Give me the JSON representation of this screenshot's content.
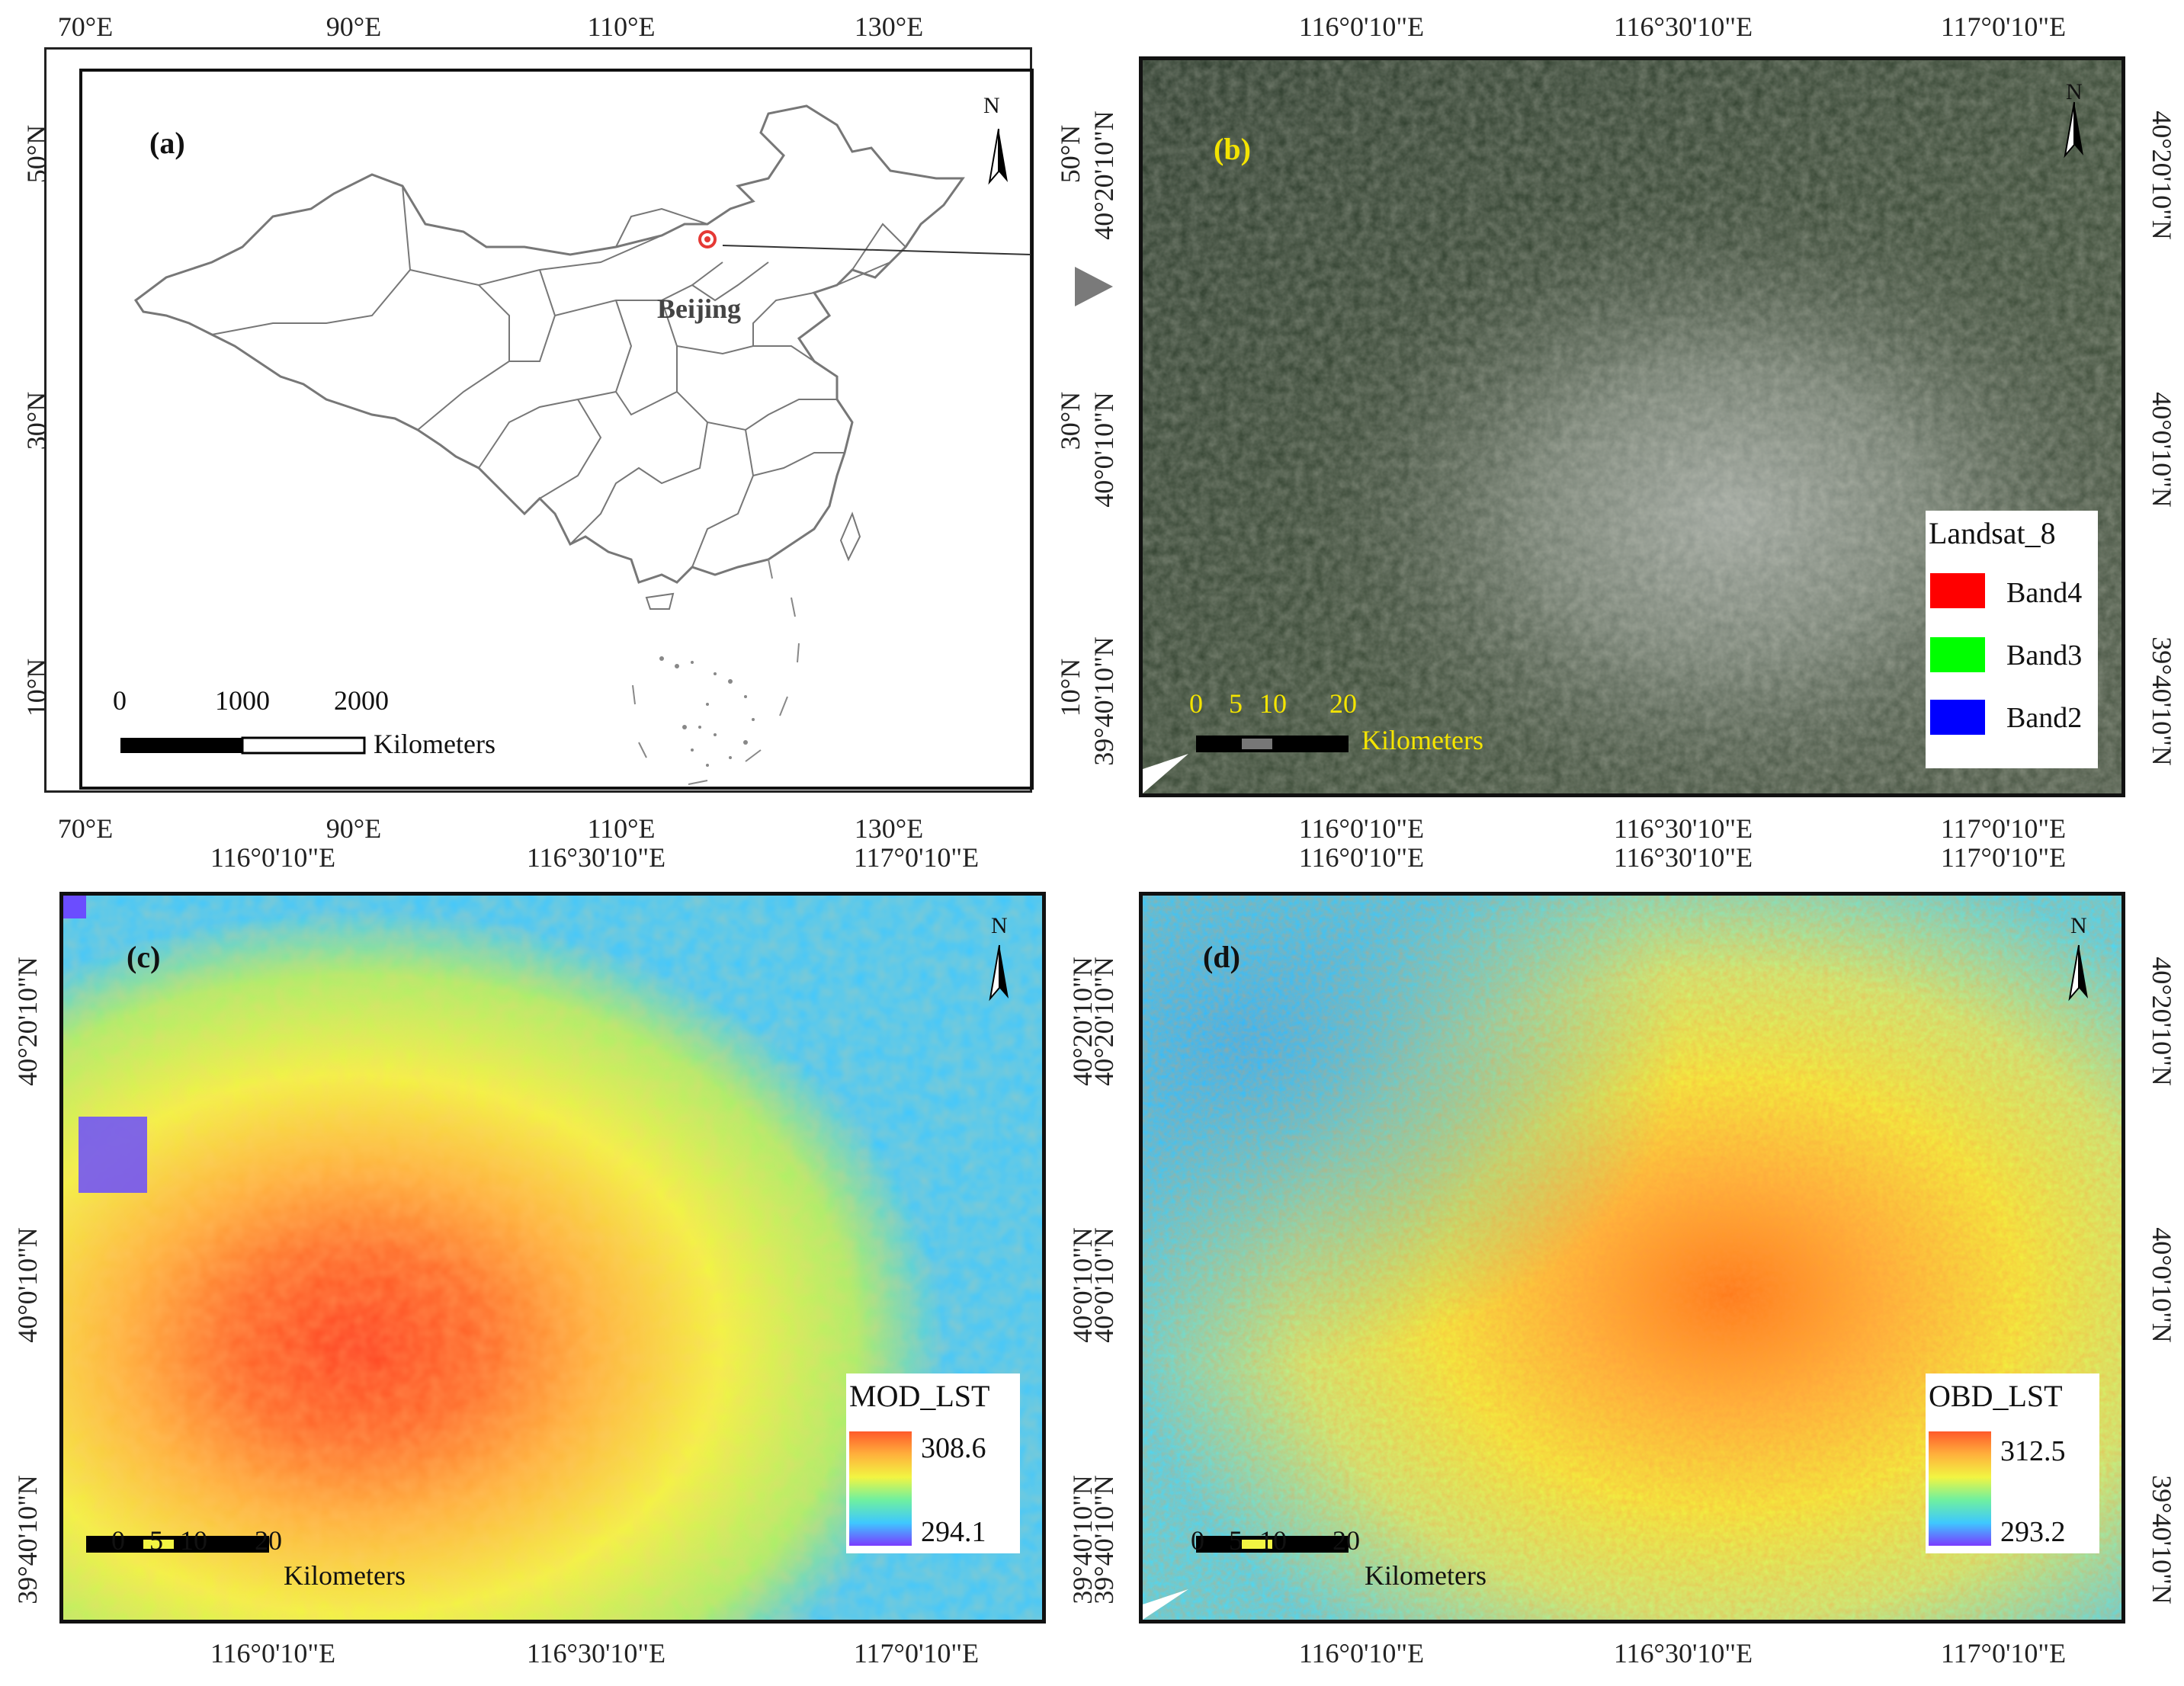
{
  "panel_a": {
    "letter": "(a)",
    "top_ticks": [
      "70°E",
      "90°E",
      "110°E",
      "130°E"
    ],
    "bottom_ticks": [
      "70°E",
      "90°E",
      "110°E",
      "130°E"
    ],
    "left_ticks": [
      "50°N",
      "30°N",
      "10°N"
    ],
    "right_ticks": [
      "50°N",
      "30°N",
      "10°N"
    ],
    "city_label": "Beijing",
    "north": "N",
    "scale": {
      "n0": "0",
      "n1": "1000",
      "n2": "2000",
      "units": "Kilometers"
    }
  },
  "panel_b": {
    "letter": "(b)",
    "top_ticks": [
      "116°0'10\"E",
      "116°30'10\"E",
      "117°0'10\"E"
    ],
    "bottom_ticks": [
      "116°0'10\"E",
      "116°30'10\"E",
      "117°0'10\"E"
    ],
    "left_ticks": [
      "40°20'10\"N",
      "40°0'10\"N",
      "39°40'10\"N"
    ],
    "right_ticks": [
      "40°20'10\"N",
      "40°0'10\"N",
      "39°40'10\"N"
    ],
    "north": "N",
    "legend": {
      "title": "Landsat_8",
      "items": [
        {
          "label": "Band4",
          "color": "#ff0000"
        },
        {
          "label": "Band3",
          "color": "#00ff00"
        },
        {
          "label": "Band2",
          "color": "#0000ff"
        }
      ]
    },
    "scale": {
      "n0": "0",
      "n1": "5",
      "n2": "10",
      "n3": "20",
      "units": "Kilometers"
    }
  },
  "panel_c": {
    "letter": "(c)",
    "top_ticks": [
      "116°0'10\"E",
      "116°30'10\"E",
      "117°0'10\"E"
    ],
    "bottom_ticks": [
      "116°0'10\"E",
      "116°30'10\"E",
      "117°0'10\"E"
    ],
    "left_ticks": [
      "40°20'10\"N",
      "40°0'10\"N",
      "39°40'10\"N"
    ],
    "right_ticks": [
      "40°20'10\"N",
      "40°0'10\"N",
      "39°40'10\"N"
    ],
    "north": "N",
    "legend": {
      "title": "MOD_LST",
      "max": "308.6",
      "min": "294.1"
    },
    "scale": {
      "n0": "0",
      "n1": "5",
      "n2": "10",
      "n3": "20",
      "units": "Kilometers"
    }
  },
  "panel_d": {
    "letter": "(d)",
    "top_ticks": [
      "116°0'10\"E",
      "116°30'10\"E",
      "117°0'10\"E"
    ],
    "bottom_ticks": [
      "116°0'10\"E",
      "116°30'10\"E",
      "117°0'10\"E"
    ],
    "left_ticks": [
      "40°20'10\"N",
      "40°0'10\"N",
      "39°40'10\"N"
    ],
    "right_ticks": [
      "40°20'10\"N",
      "40°0'10\"N",
      "39°40'10\"N"
    ],
    "north": "N",
    "legend": {
      "title": "OBD_LST",
      "max": "312.5",
      "min": "293.2"
    },
    "scale": {
      "n0": "0",
      "n1": "5",
      "n2": "10",
      "n3": "20",
      "units": "Kilometers"
    }
  },
  "colors": {
    "lst_ramp": [
      "#7a3cff",
      "#3ec8ff",
      "#f2f542",
      "#ffb03c",
      "#ff3b1f"
    ],
    "landsat_base": "#3b4a3b"
  }
}
